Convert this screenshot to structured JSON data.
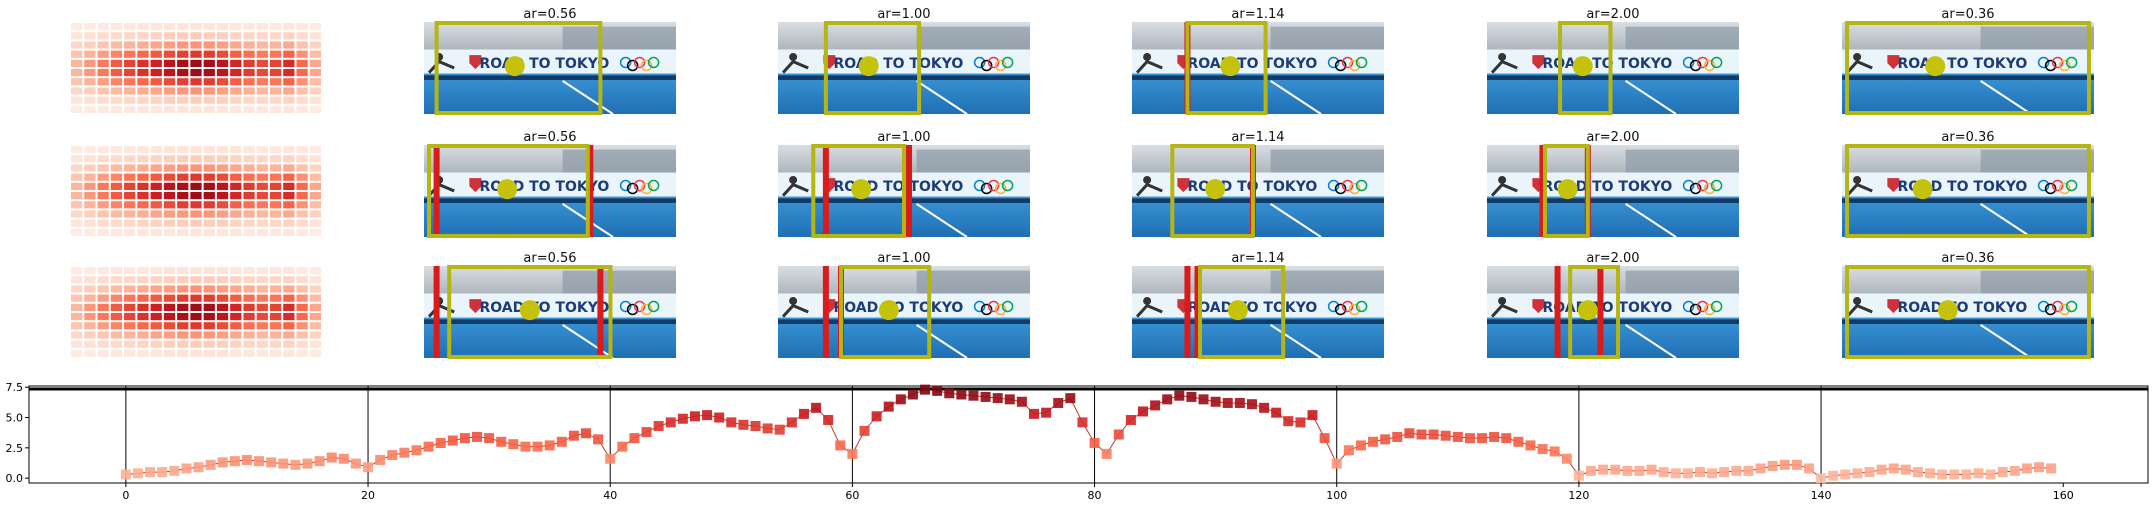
{
  "panel_grid": {
    "rows": 3,
    "columns": [
      {
        "title": "ar=0.56",
        "row_titles": [
          "ar=0.56",
          "ar=0.56",
          "ar=0.56"
        ]
      },
      {
        "title": "ar=1.00",
        "row_titles": [
          "ar=1.00",
          "ar=1.00",
          "ar=1.00"
        ]
      },
      {
        "title": "ar=1.14",
        "row_titles": [
          "ar=1.14",
          "ar=1.14",
          "ar=1.14"
        ]
      },
      {
        "title": "ar=2.00",
        "row_titles": [
          "ar=2.00",
          "ar=2.00",
          "ar=2.00"
        ]
      },
      {
        "title": "ar=0.36",
        "row_titles": [
          "ar=0.36",
          "ar=0.36",
          "ar=0.36"
        ]
      }
    ],
    "banner_text": "ROAD TO TOKYO",
    "colors": {
      "box": "#b5b514",
      "marker": "#c4c20a",
      "red_bar": "#d81b1b",
      "pool": "#2f86c9",
      "banner": "#eaf4fb",
      "banner_text": "#1d3c78"
    }
  },
  "chart_data": {
    "type": "line",
    "title": "",
    "xlabel": "",
    "ylabel": "",
    "xlim": [
      -8,
      167
    ],
    "ylim": [
      -0.4,
      7.6
    ],
    "xticks": [
      0,
      20,
      40,
      60,
      80,
      100,
      120,
      140,
      160
    ],
    "yticks": [
      0.0,
      2.5,
      5.0,
      7.5
    ],
    "ytick_labels": [
      "0.0",
      "2.5",
      "5.0",
      "7.5"
    ],
    "vlines": [
      0,
      20,
      40,
      60,
      80,
      100,
      120,
      140
    ],
    "hline": 7.35,
    "grid": false,
    "marker": "square",
    "line_color": "#c0392b",
    "x": [
      0,
      1,
      2,
      3,
      4,
      5,
      6,
      7,
      8,
      9,
      10,
      11,
      12,
      13,
      14,
      15,
      16,
      17,
      18,
      19,
      20,
      21,
      22,
      23,
      24,
      25,
      26,
      27,
      28,
      29,
      30,
      31,
      32,
      33,
      34,
      35,
      36,
      37,
      38,
      39,
      40,
      41,
      42,
      43,
      44,
      45,
      46,
      47,
      48,
      49,
      50,
      51,
      52,
      53,
      54,
      55,
      56,
      57,
      58,
      59,
      60,
      61,
      62,
      63,
      64,
      65,
      66,
      67,
      68,
      69,
      70,
      71,
      72,
      73,
      74,
      75,
      76,
      77,
      78,
      79,
      80,
      81,
      82,
      83,
      84,
      85,
      86,
      87,
      88,
      89,
      90,
      91,
      92,
      93,
      94,
      95,
      96,
      97,
      98,
      99,
      100,
      101,
      102,
      103,
      104,
      105,
      106,
      107,
      108,
      109,
      110,
      111,
      112,
      113,
      114,
      115,
      116,
      117,
      118,
      119,
      120,
      121,
      122,
      123,
      124,
      125,
      126,
      127,
      128,
      129,
      130,
      131,
      132,
      133,
      134,
      135,
      136,
      137,
      138,
      139,
      140,
      141,
      142,
      143,
      144,
      145,
      146,
      147,
      148,
      149,
      150,
      151,
      152,
      153,
      154,
      155,
      156,
      157,
      158,
      159
    ],
    "y": [
      0.3,
      0.4,
      0.5,
      0.5,
      0.6,
      0.8,
      0.9,
      1.1,
      1.3,
      1.4,
      1.5,
      1.4,
      1.3,
      1.2,
      1.1,
      1.2,
      1.4,
      1.7,
      1.6,
      1.2,
      0.9,
      1.5,
      1.9,
      2.1,
      2.3,
      2.6,
      2.9,
      3.1,
      3.3,
      3.4,
      3.3,
      3.0,
      2.8,
      2.6,
      2.6,
      2.7,
      3.0,
      3.5,
      3.7,
      3.2,
      1.6,
      2.6,
      3.3,
      3.8,
      4.3,
      4.6,
      4.9,
      5.1,
      5.2,
      5.0,
      4.6,
      4.4,
      4.3,
      4.1,
      4.0,
      4.6,
      5.3,
      5.8,
      4.8,
      2.7,
      2.0,
      3.9,
      5.1,
      5.9,
      6.5,
      6.9,
      7.3,
      7.2,
      7.0,
      6.9,
      6.8,
      6.7,
      6.6,
      6.5,
      6.3,
      5.3,
      5.4,
      6.2,
      6.6,
      4.6,
      2.9,
      2.0,
      3.6,
      4.8,
      5.5,
      6.0,
      6.5,
      6.8,
      6.7,
      6.5,
      6.3,
      6.2,
      6.2,
      6.1,
      5.8,
      5.4,
      4.7,
      4.6,
      5.2,
      3.3,
      1.2,
      2.3,
      2.7,
      3.0,
      3.2,
      3.4,
      3.7,
      3.6,
      3.6,
      3.5,
      3.4,
      3.3,
      3.3,
      3.4,
      3.3,
      3.0,
      2.7,
      2.4,
      2.2,
      1.6,
      0.2,
      0.6,
      0.7,
      0.7,
      0.6,
      0.6,
      0.7,
      0.5,
      0.4,
      0.4,
      0.5,
      0.4,
      0.5,
      0.6,
      0.6,
      0.8,
      1.0,
      1.1,
      1.1,
      0.8,
      0.0,
      0.2,
      0.3,
      0.4,
      0.5,
      0.7,
      0.8,
      0.7,
      0.5,
      0.4,
      0.3,
      0.3,
      0.3,
      0.4,
      0.3,
      0.5,
      0.6,
      0.8,
      0.9,
      0.8
    ]
  }
}
